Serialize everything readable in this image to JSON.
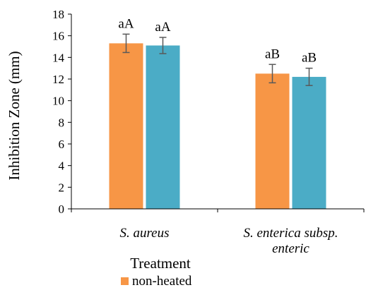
{
  "chart_data": {
    "type": "bar",
    "xlabel": "Treatment",
    "ylabel": "Inhibition Zone (mm)",
    "ylim": [
      0,
      18
    ],
    "yticks": [
      0,
      2,
      4,
      6,
      8,
      10,
      12,
      14,
      16,
      18
    ],
    "categories": [
      [
        "S. aureus"
      ],
      [
        "S. enterica subsp.",
        "enteric"
      ]
    ],
    "grid": false,
    "legend_position": "bottom-left",
    "series": [
      {
        "name": "non-heated",
        "color": "#f79646",
        "values": [
          15.3,
          12.5
        ],
        "errors": [
          0.85,
          0.85
        ],
        "labels": [
          "aA",
          "aB"
        ]
      },
      {
        "name": "",
        "color": "#4bacc6",
        "values": [
          15.1,
          12.2
        ],
        "errors": [
          0.75,
          0.8
        ],
        "labels": [
          "aA",
          "aB"
        ]
      }
    ]
  }
}
